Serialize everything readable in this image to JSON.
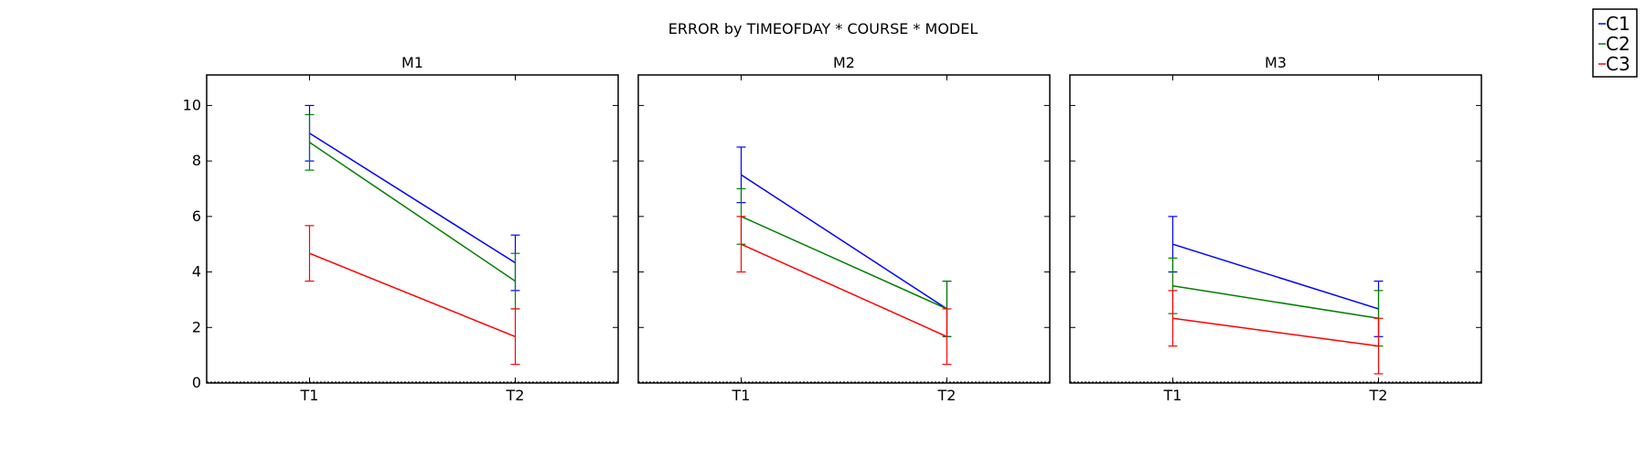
{
  "title": "ERROR by TIMEOFDAY * COURSE * MODEL",
  "legend": {
    "placement": "top-right",
    "entries": [
      {
        "label": "C1",
        "color": "#0000ff"
      },
      {
        "label": "C2",
        "color": "#008000"
      },
      {
        "label": "C3",
        "color": "#ff0000"
      }
    ]
  },
  "chart_data": [
    {
      "type": "line",
      "title": "M1",
      "categories": [
        "T1",
        "T2"
      ],
      "ylim": [
        0,
        11.1
      ],
      "yticks": [
        0,
        2,
        4,
        6,
        8,
        10
      ],
      "grid": false,
      "series": [
        {
          "name": "C1",
          "color": "#0000ff",
          "values": [
            9.0,
            4.33
          ],
          "err": [
            1.0,
            1.0
          ]
        },
        {
          "name": "C2",
          "color": "#008000",
          "values": [
            8.67,
            3.67
          ],
          "err": [
            1.0,
            1.0
          ]
        },
        {
          "name": "C3",
          "color": "#ff0000",
          "values": [
            4.67,
            1.67
          ],
          "err": [
            1.0,
            1.0
          ]
        }
      ]
    },
    {
      "type": "line",
      "title": "M2",
      "categories": [
        "T1",
        "T2"
      ],
      "ylim": [
        0,
        11.1
      ],
      "yticks": [
        0,
        2,
        4,
        6,
        8,
        10
      ],
      "grid": false,
      "series": [
        {
          "name": "C1",
          "color": "#0000ff",
          "values": [
            7.5,
            2.67
          ],
          "err": [
            1.0,
            1.0
          ]
        },
        {
          "name": "C2",
          "color": "#008000",
          "values": [
            6.0,
            2.67
          ],
          "err": [
            1.0,
            1.0
          ]
        },
        {
          "name": "C3",
          "color": "#ff0000",
          "values": [
            5.0,
            1.67
          ],
          "err": [
            1.0,
            1.0
          ]
        }
      ]
    },
    {
      "type": "line",
      "title": "M3",
      "categories": [
        "T1",
        "T2"
      ],
      "ylim": [
        0,
        11.1
      ],
      "yticks": [
        0,
        2,
        4,
        6,
        8,
        10
      ],
      "grid": false,
      "series": [
        {
          "name": "C1",
          "color": "#0000ff",
          "values": [
            5.0,
            2.67
          ],
          "err": [
            1.0,
            1.0
          ]
        },
        {
          "name": "C2",
          "color": "#008000",
          "values": [
            3.5,
            2.33
          ],
          "err": [
            1.0,
            1.0
          ]
        },
        {
          "name": "C3",
          "color": "#ff0000",
          "values": [
            2.33,
            1.33
          ],
          "err": [
            1.0,
            1.0
          ]
        }
      ]
    }
  ]
}
